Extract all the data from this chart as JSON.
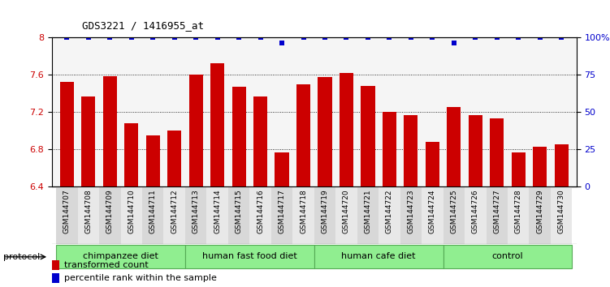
{
  "title": "GDS3221 / 1416955_at",
  "samples": [
    "GSM144707",
    "GSM144708",
    "GSM144709",
    "GSM144710",
    "GSM144711",
    "GSM144712",
    "GSM144713",
    "GSM144714",
    "GSM144715",
    "GSM144716",
    "GSM144717",
    "GSM144718",
    "GSM144719",
    "GSM144720",
    "GSM144721",
    "GSM144722",
    "GSM144723",
    "GSM144724",
    "GSM144725",
    "GSM144726",
    "GSM144727",
    "GSM144728",
    "GSM144729",
    "GSM144730"
  ],
  "bar_values": [
    7.52,
    7.37,
    7.58,
    7.08,
    6.95,
    7.0,
    7.6,
    7.72,
    7.47,
    7.37,
    6.77,
    7.5,
    7.57,
    7.62,
    7.48,
    7.2,
    7.17,
    6.88,
    7.25,
    7.17,
    7.13,
    6.77,
    6.83,
    6.85
  ],
  "percentile_values_pct": [
    100,
    100,
    100,
    100,
    100,
    100,
    100,
    100,
    100,
    100,
    96,
    100,
    100,
    100,
    100,
    100,
    100,
    100,
    96,
    100,
    100,
    100,
    100,
    100
  ],
  "bar_color": "#cc0000",
  "dot_color": "#0000cc",
  "ylim": [
    6.4,
    8.0
  ],
  "yticks_left": [
    6.4,
    6.8,
    7.2,
    7.6,
    8.0
  ],
  "yticks_right_pct": [
    0,
    25,
    50,
    75,
    100
  ],
  "groups": [
    {
      "label": "chimpanzee diet",
      "start": 0,
      "end": 6
    },
    {
      "label": "human fast food diet",
      "start": 6,
      "end": 12
    },
    {
      "label": "human cafe diet",
      "start": 12,
      "end": 18
    },
    {
      "label": "control",
      "start": 18,
      "end": 24
    }
  ],
  "legend_bar_label": "transformed count",
  "legend_dot_label": "percentile rank within the sample",
  "left_tick_color": "#cc0000",
  "right_tick_color": "#0000cc",
  "group_fill_color": "#90ee90",
  "group_border_color": "#55aa55",
  "xtick_bg_odd": "#d8d8d8",
  "xtick_bg_even": "#e8e8e8",
  "plot_bg_color": "#f5f5f5",
  "protocol_label": "protocol"
}
